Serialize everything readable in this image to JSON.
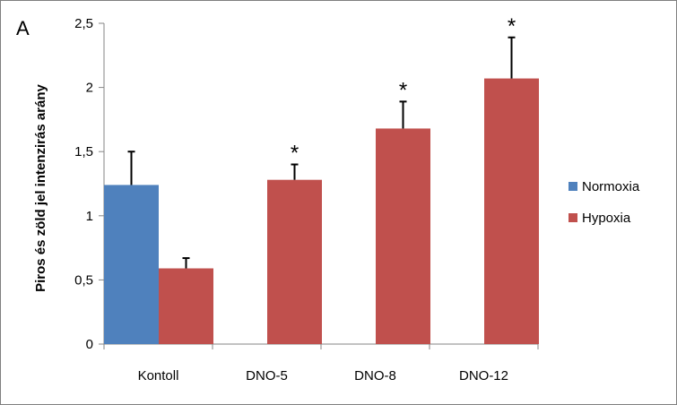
{
  "chart_data": {
    "type": "bar",
    "panel_label": "A",
    "ylabel": "Piros és zöld jel intenzirás arány",
    "xlabel": "",
    "ylim": [
      0,
      2.5
    ],
    "yticks": [
      "0",
      "0,5",
      "1",
      "1,5",
      "2",
      "2,5"
    ],
    "yticks_values": [
      0,
      0.5,
      1,
      1.5,
      2,
      2.5
    ],
    "categories": [
      "Kontoll",
      "DNO-5",
      "DNO-8",
      "DNO-12"
    ],
    "series": [
      {
        "name": "Normoxia",
        "color": "#4f81bd",
        "values": [
          1.24,
          null,
          null,
          null
        ],
        "errors": [
          0.26,
          null,
          null,
          null
        ]
      },
      {
        "name": "Hypoxia",
        "color": "#c0504d",
        "values": [
          0.59,
          1.28,
          1.68,
          2.07
        ],
        "errors": [
          0.08,
          0.12,
          0.21,
          0.32
        ]
      }
    ],
    "annotations": [
      "",
      "*",
      "*",
      "*"
    ],
    "grid": false,
    "legend_position": "right"
  }
}
